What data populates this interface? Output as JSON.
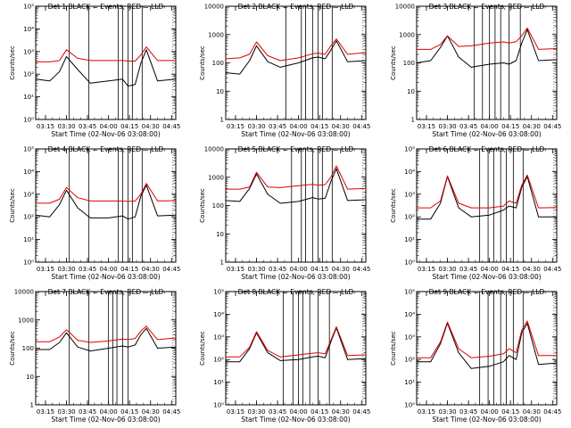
{
  "colors": {
    "events": "#000000",
    "lld": "#e00000",
    "frame": "#000000"
  },
  "chart_data": [
    {
      "type": "line",
      "title": "Det 1 BLACK = Events, RED = LLD",
      "xlabel": "Start Time (02-Nov-06 03:08:00)",
      "ylabel": "Counts/sec",
      "scale": "log",
      "xlim": [
        "03:08",
        "04:48"
      ],
      "ylim": [
        1,
        100000
      ],
      "ytick_labels": [
        "10⁰",
        "10¹",
        "10²",
        "10³",
        "10⁴",
        "10⁵"
      ],
      "xtick_labels": [
        "03:15",
        "03:30",
        "03:45",
        "04:00",
        "04:15",
        "04:30",
        "04:45"
      ],
      "markers": [
        "03:32",
        "03:46",
        "04:07",
        "04:10",
        "04:14",
        "04:17",
        "04:24"
      ],
      "series": [
        {
          "name": "Events",
          "x": [
            "03:08",
            "03:18",
            "03:25",
            "03:30",
            "03:38",
            "03:47",
            "04:00",
            "04:10",
            "04:14",
            "04:19",
            "04:23",
            "04:27",
            "04:35",
            "04:48"
          ],
          "values": [
            60,
            50,
            130,
            600,
            160,
            40,
            50,
            60,
            30,
            35,
            300,
            1200,
            50,
            60
          ]
        },
        {
          "name": "LLD",
          "x": [
            "03:08",
            "03:18",
            "03:25",
            "03:30",
            "03:38",
            "03:47",
            "04:00",
            "04:10",
            "04:14",
            "04:19",
            "04:23",
            "04:27",
            "04:35",
            "04:48"
          ],
          "values": [
            350,
            350,
            400,
            1200,
            500,
            400,
            400,
            400,
            380,
            380,
            700,
            1600,
            400,
            400
          ]
        }
      ]
    },
    {
      "type": "line",
      "title": "Det 2 BLACK = Events, RED = LLD",
      "xlabel": "Start Time (02-Nov-06 03:08:00)",
      "ylabel": "Counts/sec",
      "scale": "log",
      "xlim": [
        "03:08",
        "04:48"
      ],
      "ylim": [
        1,
        10000
      ],
      "ytick_labels": [
        "1",
        "10",
        "100",
        "1000",
        "10000"
      ],
      "xtick_labels": [
        "03:15",
        "03:30",
        "03:45",
        "04:00",
        "04:15",
        "04:30",
        "04:45"
      ],
      "markers": [
        "03:51",
        "04:02",
        "04:05",
        "04:10",
        "04:14",
        "04:17",
        "04:24"
      ],
      "series": [
        {
          "name": "Events",
          "x": [
            "03:08",
            "03:18",
            "03:25",
            "03:30",
            "03:38",
            "03:47",
            "04:00",
            "04:10",
            "04:14",
            "04:19",
            "04:23",
            "04:27",
            "04:35",
            "04:48"
          ],
          "values": [
            45,
            40,
            120,
            400,
            110,
            70,
            100,
            150,
            160,
            140,
            280,
            600,
            110,
            120
          ]
        },
        {
          "name": "LLD",
          "x": [
            "03:08",
            "03:18",
            "03:25",
            "03:30",
            "03:38",
            "03:47",
            "04:00",
            "04:10",
            "04:14",
            "04:19",
            "04:23",
            "04:27",
            "04:35",
            "04:48"
          ],
          "values": [
            140,
            150,
            200,
            550,
            180,
            120,
            150,
            210,
            220,
            200,
            400,
            700,
            200,
            230
          ]
        }
      ]
    },
    {
      "type": "line",
      "title": "Det 3 BLACK = Events, RED = LLD",
      "xlabel": "Start Time (02-Nov-06 03:08:00)",
      "ylabel": "Counts/sec",
      "scale": "log",
      "xlim": [
        "03:08",
        "04:48"
      ],
      "ylim": [
        1,
        10000
      ],
      "ytick_labels": [
        "1",
        "10",
        "100",
        "1000",
        "10000"
      ],
      "xtick_labels": [
        "03:15",
        "03:30",
        "03:45",
        "04:00",
        "04:15",
        "04:30",
        "04:45"
      ],
      "markers": [
        "03:49",
        "03:55",
        "04:00",
        "04:04",
        "04:08",
        "04:14",
        "04:22"
      ],
      "series": [
        {
          "name": "Events",
          "x": [
            "03:08",
            "03:18",
            "03:25",
            "03:30",
            "03:38",
            "03:47",
            "04:00",
            "04:10",
            "04:14",
            "04:19",
            "04:23",
            "04:27",
            "04:35",
            "04:48"
          ],
          "values": [
            100,
            120,
            350,
            900,
            160,
            70,
            90,
            100,
            90,
            120,
            500,
            1500,
            120,
            130
          ]
        },
        {
          "name": "LLD",
          "x": [
            "03:08",
            "03:18",
            "03:25",
            "03:30",
            "03:38",
            "03:47",
            "04:00",
            "04:10",
            "04:14",
            "04:19",
            "04:23",
            "04:27",
            "04:35",
            "04:48"
          ],
          "values": [
            300,
            300,
            450,
            900,
            380,
            400,
            500,
            550,
            500,
            560,
            900,
            1700,
            300,
            320
          ]
        }
      ]
    },
    {
      "type": "line",
      "title": "Det 4 BLACK = Events, RED = LLD",
      "xlabel": "Start Time (02-Nov-06 03:08:00)",
      "ylabel": "Counts/sec",
      "scale": "log",
      "xlim": [
        "03:08",
        "04:48"
      ],
      "ylim": [
        1,
        100000
      ],
      "ytick_labels": [
        "10⁰",
        "10¹",
        "10²",
        "10³",
        "10⁴",
        "10⁵"
      ],
      "xtick_labels": [
        "03:15",
        "03:30",
        "03:45",
        "04:00",
        "04:15",
        "04:30",
        "04:45"
      ],
      "markers": [
        "03:32",
        "03:46",
        "04:07",
        "04:10",
        "04:14",
        "04:17",
        "04:24"
      ],
      "series": [
        {
          "name": "Events",
          "x": [
            "03:08",
            "03:18",
            "03:25",
            "03:30",
            "03:38",
            "03:47",
            "04:00",
            "04:10",
            "04:14",
            "04:19",
            "04:23",
            "04:27",
            "04:35",
            "04:48"
          ],
          "values": [
            120,
            100,
            350,
            1500,
            250,
            90,
            90,
            110,
            80,
            100,
            800,
            2500,
            110,
            120
          ]
        },
        {
          "name": "LLD",
          "x": [
            "03:08",
            "03:18",
            "03:25",
            "03:30",
            "03:38",
            "03:47",
            "04:00",
            "04:10",
            "04:14",
            "04:19",
            "04:23",
            "04:27",
            "04:35",
            "04:48"
          ],
          "values": [
            400,
            400,
            600,
            2000,
            700,
            500,
            500,
            500,
            480,
            500,
            1000,
            3000,
            500,
            520
          ]
        }
      ]
    },
    {
      "type": "line",
      "title": "Det 5 BLACK = Events, RED = LLD",
      "xlabel": "Start Time (02-Nov-06 03:08:00)",
      "ylabel": "Counts/sec",
      "scale": "log",
      "xlim": [
        "03:08",
        "04:48"
      ],
      "ylim": [
        1,
        10000
      ],
      "ytick_labels": [
        "1",
        "10",
        "100",
        "1000",
        "10000"
      ],
      "xtick_labels": [
        "03:15",
        "03:30",
        "03:45",
        "04:00",
        "04:15",
        "04:30",
        "04:45"
      ],
      "markers": [
        "03:55",
        "04:02",
        "04:05",
        "04:10",
        "04:14",
        "04:17",
        "04:24"
      ],
      "series": [
        {
          "name": "Events",
          "x": [
            "03:08",
            "03:18",
            "03:25",
            "03:30",
            "03:38",
            "03:47",
            "04:00",
            "04:10",
            "04:14",
            "04:19",
            "04:23",
            "04:27",
            "04:35",
            "04:48"
          ],
          "values": [
            150,
            140,
            400,
            1300,
            250,
            120,
            140,
            190,
            170,
            180,
            700,
            2000,
            150,
            160
          ]
        },
        {
          "name": "LLD",
          "x": [
            "03:08",
            "03:18",
            "03:25",
            "03:30",
            "03:38",
            "03:47",
            "04:00",
            "04:10",
            "04:14",
            "04:19",
            "04:23",
            "04:27",
            "04:35",
            "04:48"
          ],
          "values": [
            380,
            380,
            450,
            1500,
            450,
            430,
            500,
            560,
            520,
            550,
            1000,
            2500,
            380,
            400
          ]
        }
      ]
    },
    {
      "type": "line",
      "title": "Det 6 BLACK = Events, RED = LLD",
      "xlabel": "Start Time (02-Nov-06 03:08:00)",
      "ylabel": "Counts/sec",
      "scale": "log",
      "xlim": [
        "03:08",
        "04:48"
      ],
      "ylim": [
        1,
        100000
      ],
      "ytick_labels": [
        "10⁰",
        "10¹",
        "10²",
        "10³",
        "10⁴",
        "10⁵"
      ],
      "xtick_labels": [
        "03:15",
        "03:30",
        "03:45",
        "04:00",
        "04:15",
        "04:30",
        "04:45"
      ],
      "markers": [
        "03:53",
        "03:59",
        "04:03",
        "04:08",
        "04:12",
        "04:17",
        "04:24"
      ],
      "series": [
        {
          "name": "Events",
          "x": [
            "03:08",
            "03:18",
            "03:25",
            "03:30",
            "03:38",
            "03:47",
            "04:00",
            "04:10",
            "04:14",
            "04:19",
            "04:23",
            "04:27",
            "04:35",
            "04:48"
          ],
          "values": [
            80,
            80,
            400,
            6000,
            250,
            100,
            120,
            200,
            300,
            250,
            2000,
            6000,
            100,
            100
          ]
        },
        {
          "name": "LLD",
          "x": [
            "03:08",
            "03:18",
            "03:25",
            "03:30",
            "03:38",
            "03:47",
            "04:00",
            "04:10",
            "04:14",
            "04:19",
            "04:23",
            "04:27",
            "04:35",
            "04:48"
          ],
          "values": [
            250,
            250,
            500,
            6500,
            400,
            250,
            250,
            300,
            500,
            400,
            2500,
            7000,
            250,
            260
          ]
        }
      ]
    },
    {
      "type": "line",
      "title": "Det 7 BLACK = Events, RED = LLD",
      "xlabel": "Start Time (02-Nov-06 03:08:00)",
      "ylabel": "Counts/sec",
      "scale": "log",
      "xlim": [
        "03:08",
        "04:48"
      ],
      "ylim": [
        1,
        10000
      ],
      "ytick_labels": [
        "1",
        "10",
        "100",
        "1000",
        "10000"
      ],
      "xtick_labels": [
        "03:15",
        "03:30",
        "03:45",
        "04:00",
        "04:15",
        "04:30",
        "04:45"
      ],
      "markers": [
        "03:32",
        "03:46",
        "04:00",
        "04:03",
        "04:06",
        "04:10",
        "04:14"
      ],
      "series": [
        {
          "name": "Events",
          "x": [
            "03:08",
            "03:18",
            "03:25",
            "03:30",
            "03:38",
            "03:47",
            "04:00",
            "04:10",
            "04:14",
            "04:19",
            "04:23",
            "04:27",
            "04:35",
            "04:48"
          ],
          "values": [
            90,
            90,
            160,
            350,
            110,
            80,
            100,
            120,
            110,
            130,
            300,
            500,
            100,
            110
          ]
        },
        {
          "name": "LLD",
          "x": [
            "03:08",
            "03:18",
            "03:25",
            "03:30",
            "03:38",
            "03:47",
            "04:00",
            "04:10",
            "04:14",
            "04:19",
            "04:23",
            "04:27",
            "04:35",
            "04:48"
          ],
          "values": [
            170,
            170,
            250,
            450,
            190,
            160,
            180,
            210,
            200,
            220,
            400,
            600,
            200,
            230
          ]
        }
      ]
    },
    {
      "type": "line",
      "title": "Det 8 BLACK = Events, RED = LLD",
      "xlabel": "Start Time (02-Nov-06 03:08:00)",
      "ylabel": "Counts/sec",
      "scale": "log",
      "xlim": [
        "03:08",
        "04:48"
      ],
      "ylim": [
        1,
        100000
      ],
      "ytick_labels": [
        "10⁰",
        "10¹",
        "10²",
        "10³",
        "10⁴",
        "10⁵"
      ],
      "xtick_labels": [
        "03:15",
        "03:30",
        "03:45",
        "04:00",
        "04:15",
        "04:30",
        "04:45"
      ],
      "markers": [
        "03:49",
        "03:56",
        "04:00",
        "04:03",
        "04:08",
        "04:14",
        "04:22"
      ],
      "series": [
        {
          "name": "Events",
          "x": [
            "03:08",
            "03:18",
            "03:25",
            "03:30",
            "03:38",
            "03:47",
            "04:00",
            "04:10",
            "04:14",
            "04:19",
            "04:23",
            "04:27",
            "04:35",
            "04:48"
          ],
          "values": [
            80,
            80,
            300,
            1500,
            200,
            90,
            100,
            130,
            140,
            120,
            600,
            2500,
            100,
            110
          ]
        },
        {
          "name": "LLD",
          "x": [
            "03:08",
            "03:18",
            "03:25",
            "03:30",
            "03:38",
            "03:47",
            "04:00",
            "04:10",
            "04:14",
            "04:19",
            "04:23",
            "04:27",
            "04:35",
            "04:48"
          ],
          "values": [
            130,
            130,
            350,
            1700,
            250,
            130,
            160,
            190,
            200,
            180,
            700,
            2800,
            150,
            160
          ]
        }
      ]
    },
    {
      "type": "line",
      "title": "Det 9 BLACK = Events, RED = LLD",
      "xlabel": "Start Time (02-Nov-06 03:08:00)",
      "ylabel": "Counts/sec",
      "scale": "log",
      "xlim": [
        "03:08",
        "04:48"
      ],
      "ylim": [
        1,
        100000
      ],
      "ytick_labels": [
        "10⁰",
        "10¹",
        "10²",
        "10³",
        "10⁴",
        "10⁵"
      ],
      "xtick_labels": [
        "03:15",
        "03:30",
        "03:45",
        "04:00",
        "04:15",
        "04:30",
        "04:45"
      ],
      "markers": [
        "03:53",
        "03:59",
        "04:03",
        "04:08",
        "04:12",
        "04:17",
        "04:24"
      ],
      "series": [
        {
          "name": "Events",
          "x": [
            "03:08",
            "03:18",
            "03:25",
            "03:30",
            "03:38",
            "03:47",
            "04:00",
            "04:10",
            "04:14",
            "04:19",
            "04:23",
            "04:27",
            "04:35",
            "04:48"
          ],
          "values": [
            80,
            80,
            500,
            4000,
            200,
            40,
            50,
            80,
            150,
            100,
            1500,
            4000,
            60,
            70
          ]
        },
        {
          "name": "LLD",
          "x": [
            "03:08",
            "03:18",
            "03:25",
            "03:30",
            "03:38",
            "03:47",
            "04:00",
            "04:10",
            "04:14",
            "04:19",
            "04:23",
            "04:27",
            "04:35",
            "04:48"
          ],
          "values": [
            120,
            120,
            600,
            4500,
            300,
            120,
            140,
            180,
            300,
            200,
            2000,
            5000,
            150,
            150
          ]
        }
      ]
    }
  ]
}
